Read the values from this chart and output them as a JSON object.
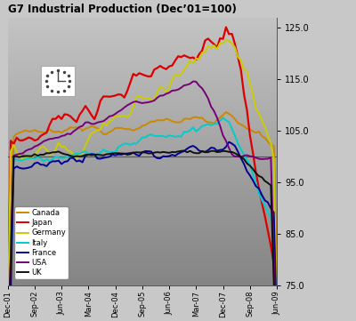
{
  "title": "G7 Industrial Production (Dec’01=100)",
  "fig_bg": "#c8c8c8",
  "plot_bg": "#b0b0b0",
  "ylim": [
    75.0,
    127.0
  ],
  "yticks": [
    75.0,
    85.0,
    95.0,
    105.0,
    115.0,
    125.0
  ],
  "xlabel_ticks": [
    "Dec-01",
    "Sep-02",
    "Jun-03",
    "Mar-04",
    "Dec-04",
    "Sep-05",
    "Jun-06",
    "Mar-07",
    "Dec-07",
    "Sep-08",
    "Jun-09"
  ],
  "tick_positions": [
    0,
    9,
    18,
    27,
    36,
    45,
    54,
    63,
    72,
    81,
    90
  ],
  "series_order": [
    "Canada",
    "Japan",
    "Germany",
    "Italy",
    "France",
    "USA",
    "UK"
  ],
  "series": {
    "Canada": {
      "color": "#cc8800",
      "lw": 1.4
    },
    "Japan": {
      "color": "#dd0000",
      "lw": 1.6
    },
    "Germany": {
      "color": "#cccc00",
      "lw": 1.4
    },
    "Italy": {
      "color": "#00cccc",
      "lw": 1.4
    },
    "France": {
      "color": "#000099",
      "lw": 1.4
    },
    "USA": {
      "color": "#770077",
      "lw": 1.4
    },
    "UK": {
      "color": "#111111",
      "lw": 1.4
    }
  },
  "n_months": 91,
  "hline_y": 100,
  "hline_color": "#555555",
  "legend_loc": "lower left"
}
